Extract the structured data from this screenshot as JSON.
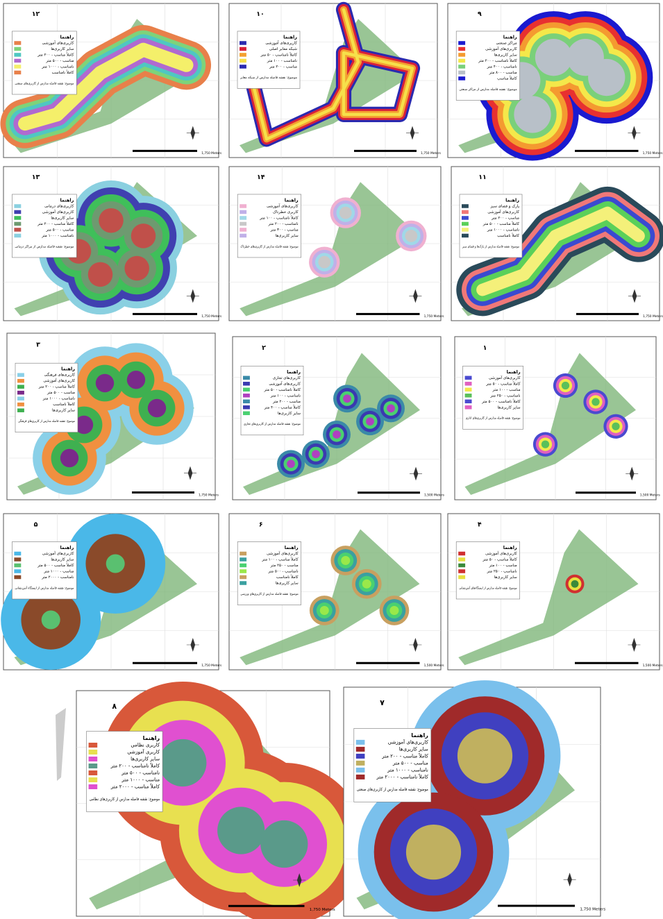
{
  "maps": [
    {
      "number": "۱۲",
      "legend_title": "راهنما",
      "legend": [
        "کاربری‌های آموزشی",
        "سایر کاربری‌ها",
        "کاملاً مناسب - ۲۰۰ متر",
        "مناسب - ۵۰۰ متر",
        "نامناسب - ۱۰۰۰ متر",
        "کاملاً نامناسب"
      ],
      "subject": "موضوع: نقشه فاصله مدارس از کاربری‌های صنعتی",
      "scale": "1,750 Meters"
    },
    {
      "number": "۱۰",
      "legend_title": "راهنما",
      "legend": [
        "کاربری‌های آموزشی",
        "شبکه معابر اصلی",
        "کاملاً نامناسب - ۵۰ متر",
        "نامناسب - ۱۰۰ متر",
        "مناسب - ۲۰۰ متر"
      ],
      "subject": "موضوع: نقشه فاصله مدارس از شبکه معابر",
      "scale": "1,750 Meters"
    },
    {
      "number": "۹",
      "legend_title": "راهنما",
      "legend": [
        "مراکز صنعتی",
        "کاربری‌های آموزشی",
        "سایر کاربری‌ها",
        "کاملاً نامناسب - ۲۰۰ متر",
        "نامناسب - ۴۰۰ متر",
        "مناسب - ۸۰۰ متر",
        "کاملاً مناسب"
      ],
      "subject": "موضوع: نقشه فاصله مدارس از مراکز صنعتی",
      "scale": "1,750 Meters"
    },
    {
      "number": "۱۳",
      "legend_title": "راهنما",
      "legend": [
        "کاربری‌های درمانی",
        "کاربری‌های آموزشی",
        "سایر کاربری‌ها",
        "کاملاً مناسب - ۲۰۰ متر",
        "مناسب - ۵۰۰ متر",
        "نامناسب - ۱۰۰۰ متر"
      ],
      "subject": "موضوع: نقشه فاصله مدارس از مراکز درمانی",
      "scale": "1,750 Meters"
    },
    {
      "number": "۱۴",
      "legend_title": "راهنما",
      "legend": [
        "کاربری‌های آموزشی",
        "کاربری خطرناک",
        "کاملاً نامناسب - ۱۰۰ متر",
        "نامناسب - ۲۰۰ متر",
        "مناسب - ۳۰۰ متر",
        "سایر کاربری‌ها"
      ],
      "subject": "موضوع: نقشه فاصله مدارس از کاربری‌های خطرناک",
      "scale": "1,750 Meters"
    },
    {
      "number": "۱۱",
      "legend_title": "راهنما",
      "legend": [
        "پارک و فضای سبز",
        "کاربری‌های آموزشی",
        "مناسب - ۲۰۰ متر",
        "کاملاً مناسب - ۵۰۰ متر",
        "نامناسب - ۱۰۰۰ متر",
        "کاملاً نامناسب"
      ],
      "subject": "موضوع: نقشه فاصله مدارس از پارک‌ها و فضای سبز",
      "scale": "1,750 Meters"
    },
    {
      "number": "۳",
      "legend_title": "راهنما",
      "legend": [
        "کاربری‌های فرهنگی",
        "کاربری‌های آموزشی",
        "کاملاً مناسب - ۲۰۰ متر",
        "مناسب - ۵۰۰ متر",
        "نامناسب - ۱۰۰۰ متر",
        "کاملاً نامناسب",
        "سایر کاربری‌ها"
      ],
      "subject": "موضوع: نقشه فاصله مدارس از کاربری‌های فرهنگی",
      "scale": "1,750 Meters"
    },
    {
      "number": "۲",
      "legend_title": "راهنما",
      "legend": [
        "کاربری‌های تجاری",
        "کاربری‌های آموزشی",
        "کاملاً نامناسب - ۵۰ متر",
        "نامناسب - ۱۰۰ متر",
        "مناسب - ۲۰۰ متر",
        "کاملاً مناسب - ۴۰۰ متر",
        "سایر کاربری‌ها"
      ],
      "subject": "موضوع: نقشه فاصله مدارس از کاربری‌های تجاری",
      "scale": "1,500 Meters"
    },
    {
      "number": "۱",
      "legend_title": "راهنما",
      "legend": [
        "کاربری‌های آموزشی",
        "کاملاً مناسب - ۵۰ متر",
        "مناسب - ۱۰۰ متر",
        "نامناسب - ۲۵۰ متر",
        "کاملاً نامناسب - ۵۰۰ متر",
        "سایر کاربری‌ها"
      ],
      "subject": "موضوع: نقشه فاصله مدارس از کاربری‌های اداری",
      "scale": "1,500 Meters"
    },
    {
      "number": "۵",
      "legend_title": "راهنما",
      "legend": [
        "کاربری‌های آموزشی",
        "سایر کاربری‌ها",
        "کاملاً مناسب - ۵۰۰ متر",
        "مناسب - ۱۰۰۰ متر",
        "نامناسب - ۲۰۰۰ متر"
      ],
      "subject": "موضوع: نقشه فاصله مدارس از ایستگاه آتش‌نشانی",
      "scale": "1,750 Meters"
    },
    {
      "number": "۶",
      "legend_title": "راهنما",
      "legend": [
        "کاربری‌های آموزشی",
        "کاملاً مناسب - ۱۰۰ متر",
        "مناسب - ۲۵۰ متر",
        "نامناسب - ۵۰۰ متر",
        "کاملاً نامناسب",
        "سایر کاربری‌ها"
      ],
      "subject": "موضوع: نقشه فاصله مدارس از کاربری‌های ورزشی",
      "scale": "1,500 Meters"
    },
    {
      "number": "۴",
      "legend_title": "راهنما",
      "legend": [
        "کاربری‌های آموزشی",
        "کاملاً مناسب - ۵۰ متر",
        "مناسب - ۱۰۰ متر",
        "نامناسب - ۲۵۰ متر",
        "سایر کاربری‌ها"
      ],
      "subject": "موضوع: نقشه فاصله مدارس از ایستگاه‌های آتش‌نشانی",
      "scale": "1,500 Meters"
    },
    {
      "number": "۸",
      "legend_title": "راهنما",
      "legend": [
        "کاربری نظامی",
        "کاربری آموزشی",
        "سایر کاربری‌ها",
        "کاملاً نامناسب - ۲۰۰ متر",
        "نامناسب - ۵۰۰ متر",
        "مناسب - ۱۰۰۰ متر",
        "کاملاً مناسب - ۲۰۰۰ متر"
      ],
      "subject": "موضوع: نقشه فاصله مدارس از کاربری‌های نظامی",
      "scale": "1,750 Meters"
    },
    {
      "number": "۷",
      "legend_title": "راهنما",
      "legend": [
        "کاربری‌های آموزشی",
        "سایر کاربری‌ها",
        "کاملاً مناسب - ۲۰۰ متر",
        "مناسب - ۵۰۰ متر",
        "نامناسب - ۱۰۰۰ متر",
        "کاملاً نامناسب - ۲۰۰۰ متر"
      ],
      "subject": "موضوع: نقشه فاصله مدارس از کاربری‌های صنعتی",
      "scale": "1,750 Meters"
    }
  ]
}
